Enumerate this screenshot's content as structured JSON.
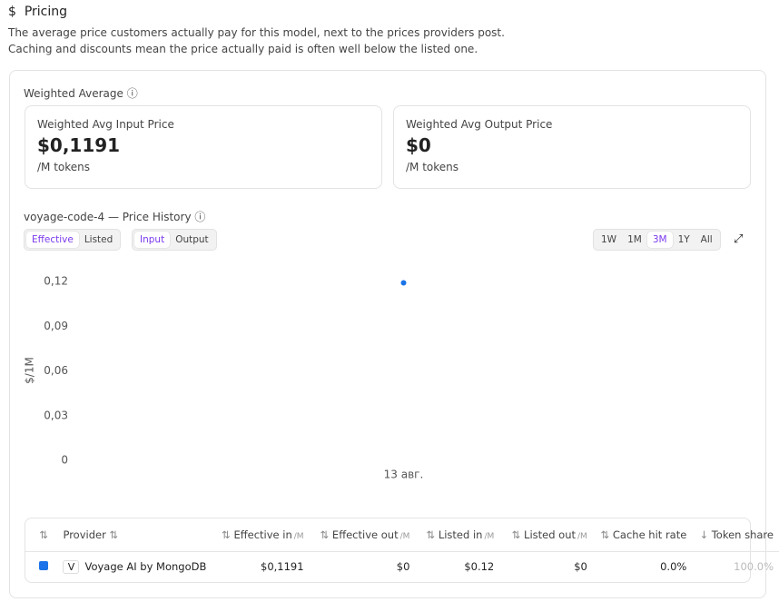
{
  "header": {
    "icon": "$",
    "title": "Pricing",
    "description_lines": [
      "The average price customers actually pay for this model, next to the prices providers post.",
      "Caching and discounts mean the price actually paid is often well below the listed one."
    ]
  },
  "weighted_average": {
    "title": "Weighted Average",
    "cards": [
      {
        "label": "Weighted Avg Input Price",
        "value": "$0,1191",
        "unit": "/M tokens"
      },
      {
        "label": "Weighted Avg Output Price",
        "value": "$0",
        "unit": "/M tokens"
      }
    ]
  },
  "price_history": {
    "title": "voyage-code-4 — Price History",
    "mode_toggle": [
      "Effective",
      "Listed"
    ],
    "selected_mode": 0,
    "direction_toggle": [
      "Input",
      "Output"
    ],
    "selected_direction": 0,
    "ranges": [
      "1W",
      "1M",
      "3M",
      "1Y",
      "All"
    ],
    "selected_range": 2
  },
  "chart_data": {
    "type": "scatter",
    "y_label": "$/1M",
    "categories": [
      "13 авг."
    ],
    "series": [
      {
        "name": "Voyage AI by MongoDB",
        "color": "#1a73e8",
        "values": [
          0.1191
        ]
      }
    ],
    "ylim": [
      0,
      0.12
    ],
    "yticks": [
      0,
      {
        "value": 0.03,
        "label": "0,03"
      },
      {
        "value": 0.06,
        "label": "0,06"
      },
      {
        "value": 0.09,
        "label": "0,09"
      },
      {
        "value": 0.12,
        "label": "0,12"
      }
    ],
    "grid": false
  },
  "table": {
    "headers": [
      {
        "label": "Provider",
        "unit": ""
      },
      {
        "label": "Effective in",
        "unit": "/M"
      },
      {
        "label": "Effective out",
        "unit": "/M"
      },
      {
        "label": "Listed in",
        "unit": "/M"
      },
      {
        "label": "Listed out",
        "unit": "/M"
      },
      {
        "label": "Cache hit rate",
        "unit": ""
      },
      {
        "label": "Token share",
        "unit": ""
      }
    ],
    "rows": [
      {
        "color": "#1a73e8",
        "logo": "V",
        "cells": [
          "Voyage AI by MongoDB",
          "$0,1191",
          "$0",
          "$0.12",
          "$0",
          "0.0%",
          "100.0%"
        ]
      }
    ]
  }
}
